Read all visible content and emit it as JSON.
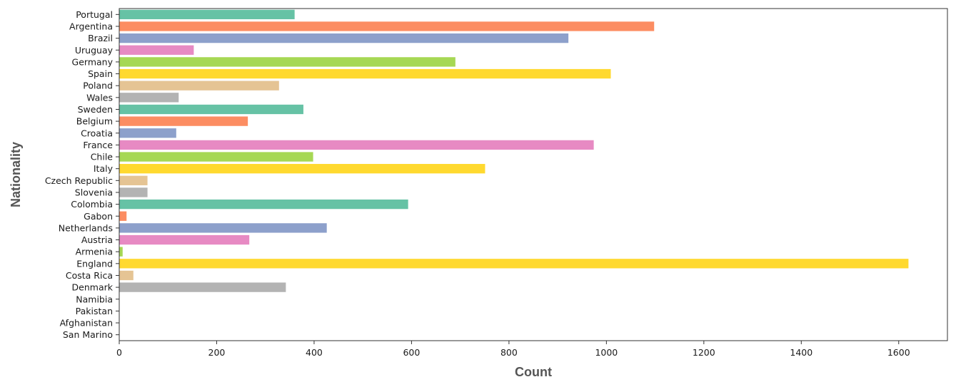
{
  "chart_data": {
    "type": "bar",
    "orientation": "horizontal",
    "xlabel": "Count",
    "ylabel": "Nationality",
    "xlim": [
      0,
      1700
    ],
    "xticks": [
      0,
      200,
      400,
      600,
      800,
      1000,
      1200,
      1400,
      1600
    ],
    "grid": false,
    "categories": [
      "Portugal",
      "Argentina",
      "Brazil",
      "Uruguay",
      "Germany",
      "Spain",
      "Poland",
      "Wales",
      "Sweden",
      "Belgium",
      "Croatia",
      "France",
      "Chile",
      "Italy",
      "Czech Republic",
      "Slovenia",
      "Colombia",
      "Gabon",
      "Netherlands",
      "Austria",
      "Armenia",
      "England",
      "Costa Rica",
      "Denmark",
      "Namibia",
      "Pakistan",
      "Afghanistan",
      "San Marino"
    ],
    "values": [
      360,
      1098,
      922,
      153,
      690,
      1009,
      328,
      122,
      378,
      264,
      117,
      974,
      398,
      751,
      58,
      58,
      593,
      15,
      426,
      267,
      7,
      1620,
      29,
      342,
      0,
      0,
      0,
      0
    ],
    "palette": [
      "#66c2a5",
      "#fc8d62",
      "#8da0cb",
      "#e78ac3",
      "#a6d854",
      "#ffd92f",
      "#e5c494",
      "#b3b3b3"
    ]
  }
}
